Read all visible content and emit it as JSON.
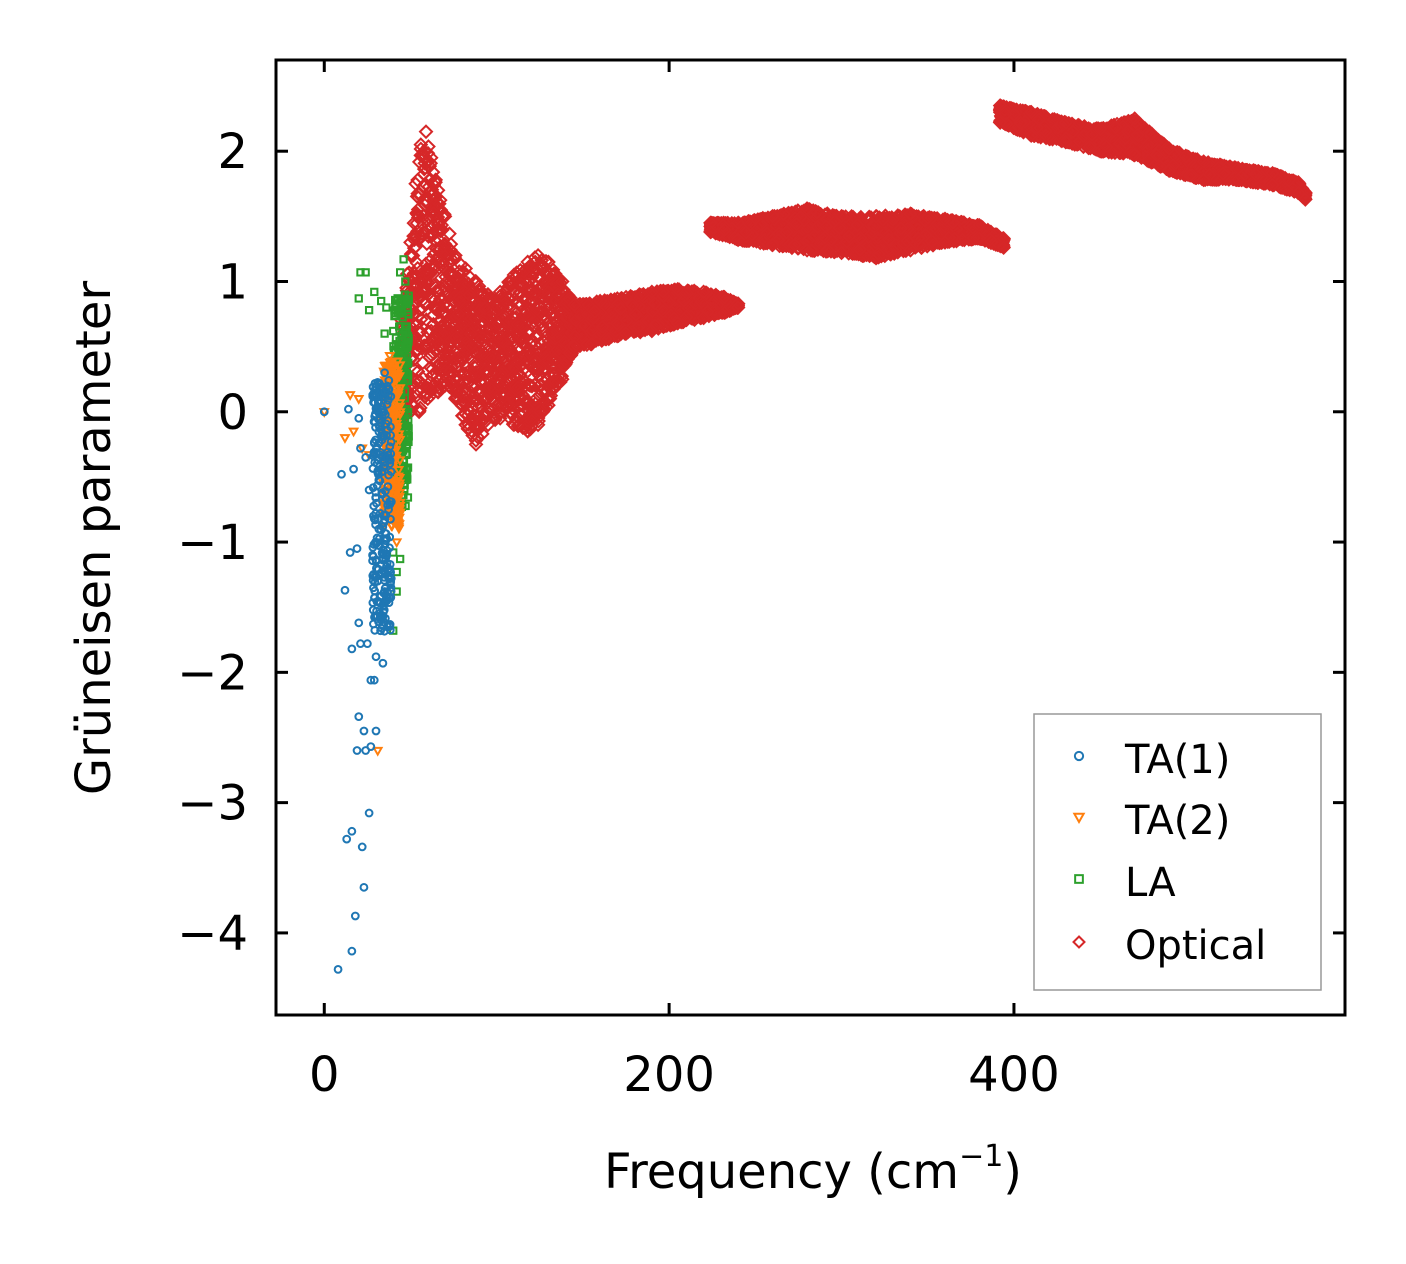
{
  "chart_data": {
    "type": "scatter",
    "title": "",
    "xlabel": "Frequency (cm",
    "xlabel_sup": "−1",
    "xlabel_end": ")",
    "ylabel": "Grüneisen parameter",
    "xlim": [
      -28,
      592
    ],
    "ylim": [
      -4.63,
      2.7
    ],
    "xticks": [
      0,
      200,
      400
    ],
    "xtick_labels": [
      "0",
      "200",
      "400"
    ],
    "yticks": [
      2,
      1,
      0,
      -1,
      -2,
      -3,
      -4
    ],
    "ytick_labels": [
      "2",
      "1",
      "0",
      "−1",
      "−2",
      "−3",
      "−4"
    ],
    "grid": false,
    "legend_position": "lower-right",
    "series": [
      {
        "name": "TA(1)",
        "marker": "circle",
        "color": "#1f77b4",
        "points": [
          [
            8,
            -4.28
          ],
          [
            16,
            -4.14
          ],
          [
            18,
            -3.87
          ],
          [
            23,
            -3.65
          ],
          [
            13,
            -3.28
          ],
          [
            16,
            -3.22
          ],
          [
            22,
            -3.34
          ],
          [
            26,
            -3.08
          ],
          [
            19,
            -2.6
          ],
          [
            24,
            -2.6
          ],
          [
            27,
            -2.57
          ],
          [
            23,
            -2.45
          ],
          [
            30,
            -2.45
          ],
          [
            20,
            -2.34
          ],
          [
            27,
            -2.06
          ],
          [
            29,
            -2.06
          ],
          [
            16,
            -1.82
          ],
          [
            21,
            -1.78
          ],
          [
            25,
            -1.78
          ],
          [
            20,
            -1.62
          ],
          [
            30,
            -1.88
          ],
          [
            34,
            -1.93
          ],
          [
            12,
            -1.37
          ],
          [
            15,
            -1.08
          ],
          [
            19,
            -1.05
          ],
          [
            28,
            -1.1
          ],
          [
            10,
            -0.48
          ],
          [
            14,
            0.02
          ],
          [
            17,
            -0.44
          ],
          [
            21,
            -0.28
          ],
          [
            24,
            -0.35
          ],
          [
            31,
            -1.3
          ],
          [
            33,
            -1.6
          ],
          [
            26,
            -0.6
          ],
          [
            29,
            -0.82
          ],
          [
            0,
            0.0
          ],
          [
            20,
            -0.05
          ],
          [
            35,
            0.3
          ],
          [
            36,
            0.18
          ],
          [
            31,
            0.02
          ]
        ],
        "dense_band": {
          "x_min": 28,
          "x_max": 39,
          "y_min": -1.7,
          "y_max": 0.25
        }
      },
      {
        "name": "TA(2)",
        "marker": "triangle-down",
        "color": "#ff7f0e",
        "points": [
          [
            31,
            -2.6
          ],
          [
            0,
            0.0
          ],
          [
            15,
            0.13
          ],
          [
            20,
            0.1
          ],
          [
            12,
            -0.2
          ],
          [
            17,
            -0.15
          ],
          [
            22,
            -0.28
          ],
          [
            26,
            -0.33
          ],
          [
            38,
            0.43
          ],
          [
            40,
            0.25
          ],
          [
            36,
            0.12
          ],
          [
            40,
            -0.8
          ],
          [
            42,
            -1.0
          ],
          [
            39,
            -0.58
          ]
        ],
        "dense_band": {
          "x_min": 34,
          "x_max": 44,
          "y_min": -0.9,
          "y_max": 0.4
        }
      },
      {
        "name": "LA",
        "marker": "square",
        "color": "#2ca02c",
        "points": [
          [
            21,
            1.07
          ],
          [
            24,
            1.07
          ],
          [
            20,
            0.87
          ],
          [
            26,
            0.78
          ],
          [
            29,
            0.92
          ],
          [
            33,
            0.85
          ],
          [
            36,
            0.8
          ],
          [
            35,
            0.6
          ],
          [
            40,
            0.62
          ],
          [
            46,
            1.17
          ],
          [
            44,
            1.07
          ],
          [
            47,
            1.0
          ],
          [
            48,
            0.85
          ],
          [
            40,
            -1.08
          ],
          [
            42,
            -1.23
          ],
          [
            44,
            -1.13
          ],
          [
            42,
            -1.38
          ],
          [
            40,
            -1.68
          ],
          [
            44,
            -0.48
          ],
          [
            45,
            -0.73
          ]
        ],
        "dense_band": {
          "x_min": 40,
          "x_max": 49,
          "y_min": -0.75,
          "y_max": 0.9
        }
      },
      {
        "name": "Optical",
        "marker": "diamond",
        "color": "#d62728",
        "bands": [
          {
            "x_min": 45,
            "x_max": 76,
            "y_max": [
              [
                45,
                0.7
              ],
              [
                50,
                1.3
              ],
              [
                53,
                1.75
              ],
              [
                56,
                2.05
              ],
              [
                59,
                2.15
              ],
              [
                62,
                1.95
              ],
              [
                66,
                1.7
              ],
              [
                70,
                1.5
              ],
              [
                76,
                1.2
              ]
            ],
            "y_min": [
              [
                45,
                -0.1
              ],
              [
                50,
                0.0
              ],
              [
                55,
                0.0
              ],
              [
                60,
                0.1
              ],
              [
                66,
                0.15
              ],
              [
                70,
                0.2
              ],
              [
                76,
                0.15
              ]
            ]
          },
          {
            "x_min": 76,
            "x_max": 145,
            "y_max": [
              [
                76,
                1.2
              ],
              [
                82,
                1.1
              ],
              [
                88,
                1.0
              ],
              [
                95,
                0.9
              ],
              [
                102,
                0.92
              ],
              [
                110,
                1.05
              ],
              [
                118,
                1.15
              ],
              [
                124,
                1.2
              ],
              [
                130,
                1.15
              ],
              [
                138,
                1.0
              ],
              [
                145,
                0.82
              ]
            ],
            "y_min": [
              [
                76,
                0.1
              ],
              [
                82,
                -0.1
              ],
              [
                88,
                -0.25
              ],
              [
                95,
                -0.1
              ],
              [
                102,
                -0.05
              ],
              [
                110,
                -0.1
              ],
              [
                118,
                -0.15
              ],
              [
                124,
                -0.1
              ],
              [
                130,
                0.05
              ],
              [
                138,
                0.25
              ],
              [
                145,
                0.5
              ]
            ]
          },
          {
            "x_min": 145,
            "x_max": 240,
            "y_max": [
              [
                145,
                0.82
              ],
              [
                160,
                0.85
              ],
              [
                175,
                0.88
              ],
              [
                190,
                0.92
              ],
              [
                205,
                0.94
              ],
              [
                220,
                0.92
              ],
              [
                232,
                0.88
              ],
              [
                240,
                0.83
              ]
            ],
            "y_min": [
              [
                145,
                0.5
              ],
              [
                155,
                0.52
              ],
              [
                165,
                0.56
              ],
              [
                175,
                0.6
              ],
              [
                190,
                0.62
              ],
              [
                205,
                0.68
              ],
              [
                220,
                0.72
              ],
              [
                232,
                0.76
              ],
              [
                240,
                0.8
              ]
            ]
          },
          {
            "x_min": 224,
            "x_max": 394,
            "y_max": [
              [
                224,
                1.45
              ],
              [
                240,
                1.45
              ],
              [
                260,
                1.5
              ],
              [
                280,
                1.56
              ],
              [
                300,
                1.5
              ],
              [
                320,
                1.5
              ],
              [
                340,
                1.52
              ],
              [
                360,
                1.48
              ],
              [
                380,
                1.43
              ],
              [
                394,
                1.33
              ]
            ],
            "y_min": [
              [
                224,
                1.38
              ],
              [
                240,
                1.32
              ],
              [
                260,
                1.28
              ],
              [
                280,
                1.24
              ],
              [
                300,
                1.22
              ],
              [
                320,
                1.18
              ],
              [
                340,
                1.24
              ],
              [
                360,
                1.3
              ],
              [
                380,
                1.33
              ],
              [
                394,
                1.26
              ]
            ]
          },
          {
            "x_min": 392,
            "x_max": 569,
            "y_max": [
              [
                392,
                2.35
              ],
              [
                410,
                2.3
              ],
              [
                430,
                2.22
              ],
              [
                450,
                2.17
              ],
              [
                470,
                2.25
              ],
              [
                490,
                2.02
              ],
              [
                510,
                1.92
              ],
              [
                530,
                1.87
              ],
              [
                550,
                1.83
              ],
              [
                565,
                1.76
              ],
              [
                569,
                1.68
              ]
            ],
            "y_min": [
              [
                392,
                2.22
              ],
              [
                410,
                2.12
              ],
              [
                430,
                2.07
              ],
              [
                450,
                2.0
              ],
              [
                470,
                1.97
              ],
              [
                490,
                1.85
              ],
              [
                510,
                1.78
              ],
              [
                530,
                1.78
              ],
              [
                550,
                1.74
              ],
              [
                565,
                1.68
              ],
              [
                569,
                1.63
              ]
            ]
          }
        ]
      }
    ]
  }
}
